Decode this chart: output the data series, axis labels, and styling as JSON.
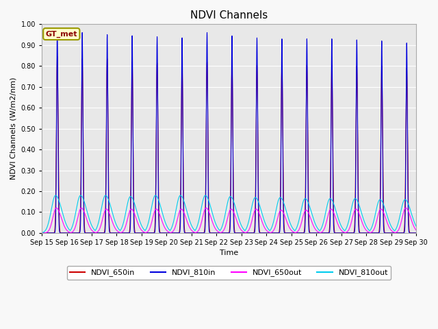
{
  "title": "NDVI Channels",
  "ylabel": "NDVI Channels (W/m2/nm)",
  "xlabel": "Time",
  "gt_label": "GT_met",
  "ylim": [
    0.0,
    1.0
  ],
  "yticks": [
    0.0,
    0.1,
    0.2,
    0.3,
    0.4,
    0.5,
    0.6,
    0.7,
    0.8,
    0.9,
    1.0
  ],
  "num_days": 15,
  "start_day": 15,
  "colors": {
    "NDVI_650in": "#cc0000",
    "NDVI_810in": "#0000dd",
    "NDVI_650out": "#ff00ff",
    "NDVI_810out": "#00ccee"
  },
  "legend_labels": [
    "NDVI_650in",
    "NDVI_810in",
    "NDVI_650out",
    "NDVI_810out"
  ],
  "background_color": "#e8e8e8",
  "grid_color": "#ffffff",
  "peak_650in": [
    0.845,
    0.835,
    0.835,
    0.82,
    0.815,
    0.805,
    0.82,
    0.81,
    0.805,
    0.81,
    0.805,
    0.805,
    0.8,
    0.8,
    0.79
  ],
  "peak_810in": [
    0.97,
    0.96,
    0.95,
    0.945,
    0.94,
    0.935,
    0.96,
    0.945,
    0.935,
    0.93,
    0.93,
    0.93,
    0.925,
    0.92,
    0.91
  ],
  "peak_650out": [
    0.12,
    0.12,
    0.115,
    0.115,
    0.115,
    0.115,
    0.12,
    0.115,
    0.115,
    0.11,
    0.11,
    0.115,
    0.115,
    0.115,
    0.12
  ],
  "peak_810out": [
    0.18,
    0.18,
    0.18,
    0.175,
    0.18,
    0.18,
    0.18,
    0.175,
    0.17,
    0.17,
    0.165,
    0.165,
    0.165,
    0.16,
    0.16
  ]
}
